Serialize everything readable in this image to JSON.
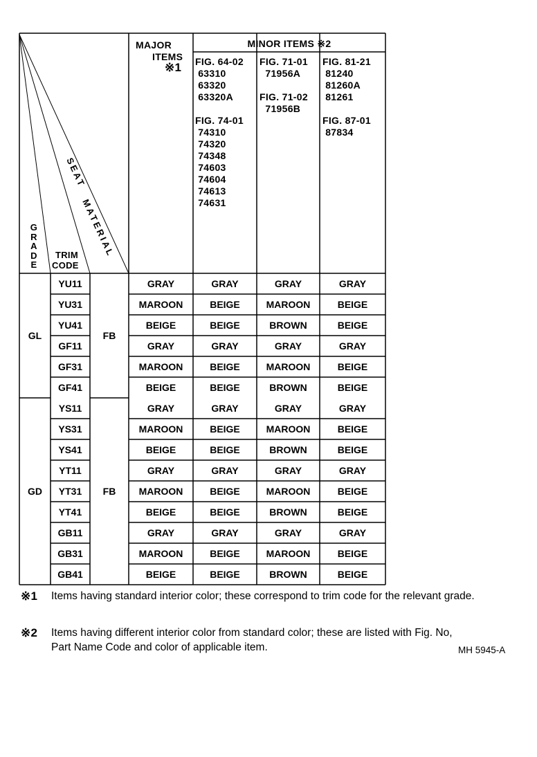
{
  "header": {
    "grade": "GRADE",
    "trim_code": [
      "TRIM",
      "CODE"
    ],
    "seat_material": [
      "SEAT",
      "MATERIAL"
    ],
    "major_items": [
      "MAJOR",
      "ITEMS",
      "※1"
    ],
    "minor_items": "MINOR ITEMS ※2",
    "minor_columns": [
      {
        "lines": [
          "FIG. 64-02",
          " 63310",
          " 63320",
          " 63320A",
          "",
          "FIG. 74-01",
          " 74310",
          " 74320",
          " 74348",
          " 74603",
          " 74604",
          " 74613",
          " 74631"
        ]
      },
      {
        "lines": [
          "FIG. 71-01",
          "  71956A",
          "",
          "FIG. 71-02",
          "  71956B"
        ]
      },
      {
        "lines": [
          "FIG. 81-21",
          " 81240",
          " 81260A",
          " 81261",
          "",
          "FIG. 87-01",
          " 87834"
        ]
      }
    ]
  },
  "groups": [
    {
      "grade": "GL",
      "seat_material": "FB",
      "rows": [
        {
          "trim": "YU11",
          "major": "GRAY",
          "minor": [
            "GRAY",
            "GRAY",
            "GRAY"
          ]
        },
        {
          "trim": "YU31",
          "major": "MAROON",
          "minor": [
            "BEIGE",
            "MAROON",
            "BEIGE"
          ]
        },
        {
          "trim": "YU41",
          "major": "BEIGE",
          "minor": [
            "BEIGE",
            "BROWN",
            "BEIGE"
          ]
        },
        {
          "trim": "GF11",
          "major": "GRAY",
          "minor": [
            "GRAY",
            "GRAY",
            "GRAY"
          ]
        },
        {
          "trim": "GF31",
          "major": "MAROON",
          "minor": [
            "BEIGE",
            "MAROON",
            "BEIGE"
          ]
        },
        {
          "trim": "GF41",
          "major": "BEIGE",
          "minor": [
            "BEIGE",
            "BROWN",
            "BEIGE"
          ]
        }
      ]
    },
    {
      "grade": "GD",
      "seat_material": "FB",
      "rows": [
        {
          "trim": "YS11",
          "major": "GRAY",
          "minor": [
            "GRAY",
            "GRAY",
            "GRAY"
          ]
        },
        {
          "trim": "YS31",
          "major": "MAROON",
          "minor": [
            "BEIGE",
            "MAROON",
            "BEIGE"
          ]
        },
        {
          "trim": "YS41",
          "major": "BEIGE",
          "minor": [
            "BEIGE",
            "BROWN",
            "BEIGE"
          ]
        },
        {
          "trim": "YT11",
          "major": "GRAY",
          "minor": [
            "GRAY",
            "GRAY",
            "GRAY"
          ]
        },
        {
          "trim": "YT31",
          "major": "MAROON",
          "minor": [
            "BEIGE",
            "MAROON",
            "BEIGE"
          ]
        },
        {
          "trim": "YT41",
          "major": "BEIGE",
          "minor": [
            "BEIGE",
            "BROWN",
            "BEIGE"
          ]
        },
        {
          "trim": "GB11",
          "major": "GRAY",
          "minor": [
            "GRAY",
            "GRAY",
            "GRAY"
          ]
        },
        {
          "trim": "GB31",
          "major": "MAROON",
          "minor": [
            "BEIGE",
            "MAROON",
            "BEIGE"
          ]
        },
        {
          "trim": "GB41",
          "major": "BEIGE",
          "minor": [
            "BEIGE",
            "BROWN",
            "BEIGE"
          ]
        }
      ]
    }
  ],
  "notes": [
    {
      "mark": "※1",
      "text": "Items having standard interior color; these correspond to trim code for the relevant grade."
    },
    {
      "mark": "※2",
      "text": "Items having different interior color from standard color; these are listed with Fig. No, Part Name Code and color of applicable item."
    }
  ],
  "figure_code": "MH 5945-A"
}
